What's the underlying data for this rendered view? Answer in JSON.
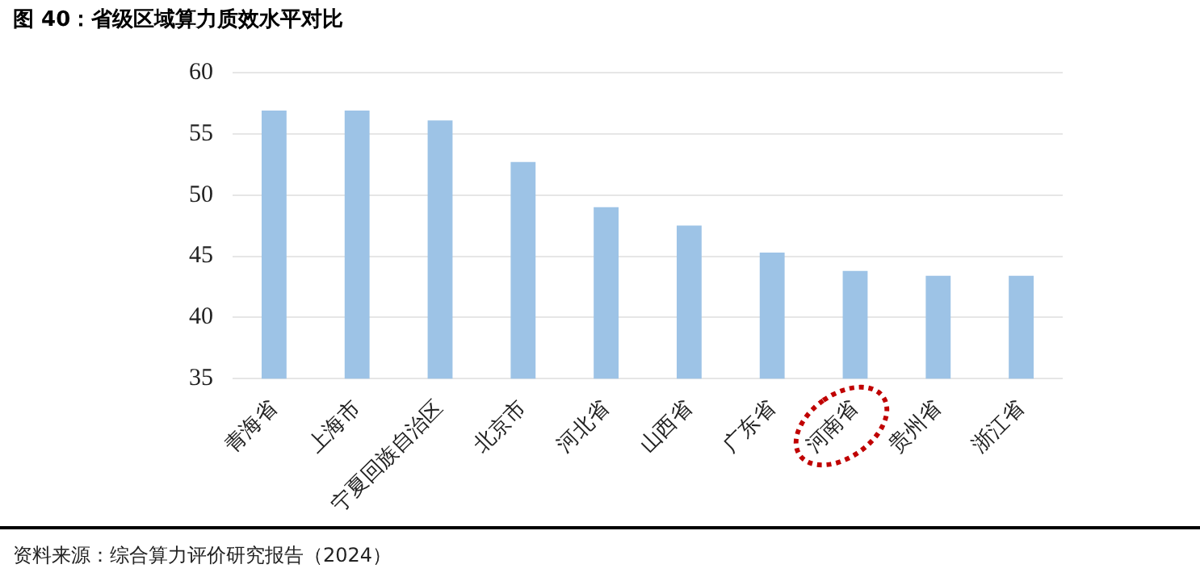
{
  "chart_data": {
    "type": "bar",
    "title": "图 40：省级区域算力质效水平对比",
    "categories": [
      "青海省",
      "上海市",
      "宁夏回族自治区",
      "北京市",
      "河北省",
      "山西省",
      "广东省",
      "河南省",
      "贵州省",
      "浙江省"
    ],
    "values": [
      56.9,
      56.9,
      56.1,
      52.7,
      49.0,
      47.5,
      45.3,
      43.8,
      43.4,
      43.4
    ],
    "color": "#9dc3e6",
    "ylim": [
      35,
      60
    ],
    "yticks": [
      35,
      40,
      45,
      50,
      55,
      60
    ],
    "grid": "y",
    "annotations": [
      "资料来源：综合算力评价研究报告（2024）"
    ]
  }
}
